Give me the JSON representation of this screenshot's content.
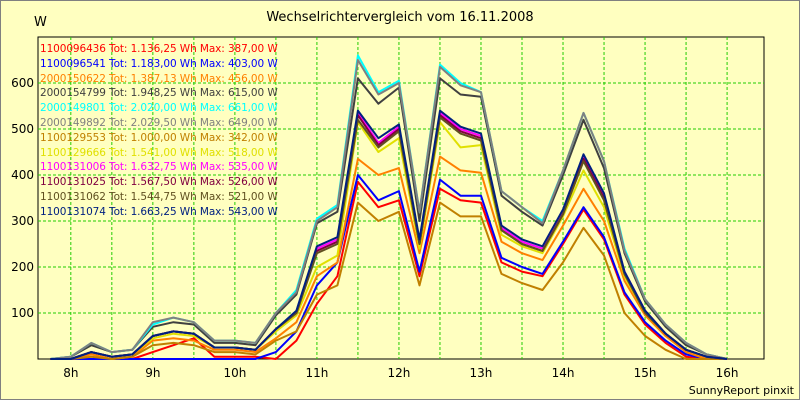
{
  "header": {
    "title": "Wechselrichtervergleich vom 16.11.2008",
    "unit": "W",
    "credit": "SunnyReport pinxit"
  },
  "colors": {
    "background": "#ffffc0",
    "grid": "#22cc00"
  },
  "legend": [
    {
      "text": "1100096436 Tot: 1.136,25 Wh Max: 387,00 W",
      "color": "#ff0000"
    },
    {
      "text": "1100096541 Tot: 1.183,00 Wh Max: 403,00 W",
      "color": "#0000ff"
    },
    {
      "text": "2000150622 Tot: 1.387,13 Wh Max: 456,00 W",
      "color": "#ff8000"
    },
    {
      "text": "2000154799 Tot: 1.948,25 Wh Max: 615,00 W",
      "color": "#404040"
    },
    {
      "text": "2000149801 Tot: 2.020,00 Wh Max: 661,00 W",
      "color": "#00ffff"
    },
    {
      "text": "2000149892 Tot: 2.029,50 Wh Max: 649,00 W",
      "color": "#808080"
    },
    {
      "text": "1100129553 Tot: 1.000,00 Wh Max: 342,00 W",
      "color": "#c08000"
    },
    {
      "text": "1100129666 Tot: 1.541,00 Wh Max: 518,00 W",
      "color": "#e0e000"
    },
    {
      "text": "1100131006 Tot: 1.632,75 Wh Max: 535,00 W",
      "color": "#ff00ff"
    },
    {
      "text": "1100131025 Tot: 1.567,50 Wh Max: 526,00 W",
      "color": "#800040"
    },
    {
      "text": "1100131062 Tot: 1.544,75 Wh Max: 521,00 W",
      "color": "#605020"
    },
    {
      "text": "1100131074 Tot: 1.663,25 Wh Max: 543,00 W",
      "color": "#002080"
    }
  ],
  "chart_data": {
    "type": "line",
    "title": "Wechselrichtervergleich vom 16.11.2008",
    "ylabel": "W",
    "xlabel": "",
    "x": [
      7.75,
      8.0,
      8.25,
      8.5,
      8.75,
      9.0,
      9.25,
      9.5,
      9.75,
      10.0,
      10.25,
      10.5,
      10.75,
      11.0,
      11.25,
      11.5,
      11.75,
      12.0,
      12.25,
      12.5,
      12.75,
      13.0,
      13.25,
      13.5,
      13.75,
      14.0,
      14.25,
      14.5,
      14.75,
      15.0,
      15.25,
      15.5,
      15.75,
      16.0
    ],
    "xticks": [
      "8h",
      "9h",
      "10h",
      "11h",
      "12h",
      "13h",
      "14h",
      "15h",
      "16h"
    ],
    "xtick_values": [
      8,
      9,
      10,
      11,
      12,
      13,
      14,
      15,
      16
    ],
    "xlim": [
      7.6,
      16.45
    ],
    "ylim": [
      0,
      700
    ],
    "yticks": [
      100,
      200,
      300,
      400,
      500,
      600
    ],
    "grid": true,
    "legend_position": "top-left",
    "series": [
      {
        "name": "1100096436",
        "color": "#ff0000",
        "values": [
          0,
          0,
          0,
          0,
          0,
          15,
          30,
          45,
          5,
          5,
          5,
          0,
          40,
          120,
          180,
          385,
          330,
          345,
          180,
          370,
          345,
          340,
          210,
          190,
          180,
          250,
          325,
          260,
          140,
          75,
          35,
          5,
          0,
          0
        ]
      },
      {
        "name": "1100096541",
        "color": "#0000ff",
        "values": [
          0,
          0,
          0,
          0,
          0,
          0,
          0,
          0,
          0,
          0,
          0,
          15,
          60,
          160,
          210,
          400,
          345,
          365,
          190,
          390,
          355,
          355,
          220,
          200,
          185,
          255,
          330,
          265,
          145,
          80,
          40,
          10,
          0,
          0
        ]
      },
      {
        "name": "2000150622",
        "color": "#ff8000",
        "values": [
          0,
          0,
          10,
          0,
          5,
          40,
          45,
          40,
          20,
          20,
          15,
          45,
          80,
          180,
          210,
          435,
          400,
          415,
          230,
          440,
          410,
          405,
          255,
          230,
          215,
          290,
          370,
          300,
          170,
          95,
          50,
          15,
          0,
          0
        ]
      },
      {
        "name": "2000154799",
        "color": "#404040",
        "values": [
          0,
          5,
          30,
          15,
          20,
          70,
          80,
          75,
          35,
          35,
          30,
          95,
          140,
          295,
          320,
          610,
          555,
          590,
          300,
          610,
          575,
          570,
          355,
          320,
          290,
          400,
          520,
          415,
          230,
          125,
          70,
          30,
          10,
          0
        ]
      },
      {
        "name": "2000149801",
        "color": "#00ffff",
        "values": [
          0,
          5,
          35,
          15,
          20,
          75,
          90,
          80,
          40,
          40,
          35,
          100,
          150,
          305,
          335,
          660,
          580,
          605,
          320,
          640,
          600,
          580,
          365,
          330,
          300,
          410,
          535,
          430,
          240,
          130,
          75,
          35,
          10,
          0
        ]
      },
      {
        "name": "2000149892",
        "color": "#808080",
        "values": [
          0,
          5,
          35,
          15,
          20,
          80,
          90,
          80,
          40,
          40,
          35,
          100,
          145,
          300,
          330,
          650,
          575,
          600,
          320,
          635,
          595,
          580,
          365,
          330,
          295,
          410,
          535,
          430,
          235,
          130,
          75,
          35,
          10,
          0
        ]
      },
      {
        "name": "1100129553",
        "color": "#c08000",
        "values": [
          0,
          0,
          5,
          0,
          5,
          30,
          35,
          30,
          15,
          15,
          10,
          40,
          60,
          140,
          160,
          340,
          300,
          320,
          160,
          340,
          310,
          310,
          185,
          165,
          150,
          210,
          285,
          225,
          100,
          50,
          20,
          0,
          0,
          0
        ]
      },
      {
        "name": "1100129666",
        "color": "#e0e000",
        "values": [
          0,
          0,
          15,
          5,
          10,
          45,
          55,
          50,
          25,
          25,
          20,
          60,
          95,
          200,
          225,
          515,
          450,
          480,
          240,
          515,
          460,
          465,
          270,
          245,
          230,
          310,
          410,
          330,
          180,
          100,
          55,
          20,
          5,
          0
        ]
      },
      {
        "name": "1100131006",
        "color": "#ff00ff",
        "values": [
          0,
          0,
          15,
          5,
          10,
          50,
          60,
          55,
          25,
          25,
          20,
          65,
          100,
          240,
          260,
          535,
          470,
          505,
          255,
          535,
          500,
          485,
          285,
          255,
          240,
          320,
          440,
          355,
          190,
          105,
          55,
          20,
          5,
          0
        ]
      },
      {
        "name": "1100131025",
        "color": "#800040",
        "values": [
          0,
          0,
          15,
          5,
          10,
          50,
          60,
          55,
          25,
          25,
          20,
          65,
          100,
          235,
          255,
          530,
          465,
          500,
          250,
          530,
          495,
          480,
          280,
          250,
          235,
          315,
          435,
          350,
          185,
          105,
          55,
          20,
          5,
          0
        ]
      },
      {
        "name": "1100131062",
        "color": "#605020",
        "values": [
          0,
          0,
          15,
          5,
          10,
          50,
          60,
          55,
          25,
          25,
          20,
          65,
          100,
          230,
          250,
          520,
          460,
          495,
          250,
          525,
          490,
          475,
          280,
          250,
          235,
          315,
          430,
          345,
          185,
          100,
          55,
          20,
          5,
          0
        ]
      },
      {
        "name": "1100131074",
        "color": "#002080",
        "values": [
          0,
          0,
          15,
          5,
          10,
          50,
          60,
          55,
          25,
          25,
          20,
          65,
          105,
          245,
          265,
          540,
          480,
          510,
          260,
          540,
          505,
          490,
          290,
          260,
          245,
          325,
          445,
          360,
          190,
          105,
          55,
          20,
          5,
          0
        ]
      }
    ]
  }
}
